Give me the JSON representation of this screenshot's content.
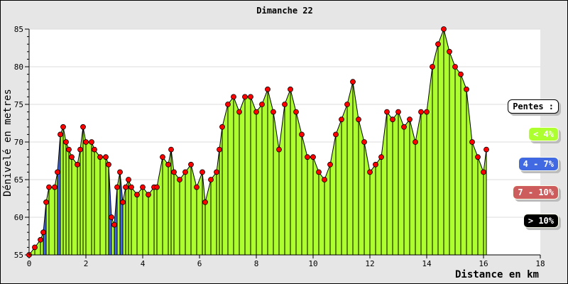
{
  "chart_data": {
    "type": "area",
    "title": "Dimanche 22",
    "xlabel": "Distance en km",
    "ylabel": "Dénivelé en metres",
    "xlim": [
      0,
      18
    ],
    "ylim": [
      55,
      85
    ],
    "x_ticks": [
      "0",
      "2",
      "4",
      "6",
      "8",
      "10",
      "12",
      "14",
      "16",
      "18"
    ],
    "y_ticks": [
      "55",
      "60",
      "65",
      "70",
      "75",
      "80",
      "85"
    ],
    "grid": true,
    "x": [
      0,
      0.2,
      0.4,
      0.5,
      0.6,
      0.7,
      0.9,
      1.0,
      1.1,
      1.2,
      1.3,
      1.4,
      1.5,
      1.7,
      1.8,
      1.9,
      2.0,
      2.2,
      2.3,
      2.5,
      2.7,
      2.8,
      2.9,
      3.0,
      3.1,
      3.2,
      3.3,
      3.4,
      3.5,
      3.6,
      3.8,
      4.0,
      4.2,
      4.4,
      4.5,
      4.7,
      4.9,
      5.0,
      5.1,
      5.3,
      5.5,
      5.7,
      5.9,
      6.1,
      6.2,
      6.4,
      6.6,
      6.7,
      6.8,
      7.0,
      7.2,
      7.4,
      7.6,
      7.8,
      8.0,
      8.2,
      8.4,
      8.6,
      8.8,
      9.0,
      9.2,
      9.4,
      9.6,
      9.8,
      10.0,
      10.2,
      10.4,
      10.6,
      10.8,
      11.0,
      11.2,
      11.4,
      11.6,
      11.8,
      12.0,
      12.2,
      12.4,
      12.6,
      12.8,
      13.0,
      13.2,
      13.4,
      13.6,
      13.8,
      14.0,
      14.2,
      14.4,
      14.6,
      14.8,
      15.0,
      15.2,
      15.4,
      15.6,
      15.8,
      16.0,
      16.1
    ],
    "y": [
      55,
      56,
      57,
      58,
      62,
      64,
      64,
      66,
      71,
      72,
      70,
      69,
      68,
      67,
      69,
      72,
      70,
      70,
      69,
      68,
      68,
      67,
      60,
      59,
      64,
      66,
      62,
      64,
      65,
      64,
      63,
      64,
      63,
      64,
      64,
      68,
      67,
      69,
      66,
      65,
      66,
      67,
      64,
      66,
      62,
      65,
      66,
      69,
      72,
      75,
      76,
      74,
      76,
      76,
      74,
      75,
      77,
      74,
      69,
      75,
      77,
      74,
      71,
      68,
      68,
      66,
      65,
      67,
      71,
      73,
      75,
      78,
      73,
      70,
      66,
      67,
      68,
      74,
      73,
      74,
      72,
      73,
      70,
      74,
      74,
      80,
      83,
      85,
      82,
      80,
      79,
      77,
      70,
      68,
      66,
      69
    ],
    "legend_title": "Pentes :",
    "legend": [
      {
        "label": "< 4%",
        "color": "#adff2f",
        "text": "#ffffff"
      },
      {
        "label": "4 - 7%",
        "color": "#4169e1",
        "text": "#ffffff"
      },
      {
        "label": "7 - 10%",
        "color": "#cd5c5c",
        "text": "#ffffff"
      },
      {
        "label": "> 10%",
        "color": "#000000",
        "text": "#ffffff"
      }
    ],
    "legend_placement": "right"
  }
}
